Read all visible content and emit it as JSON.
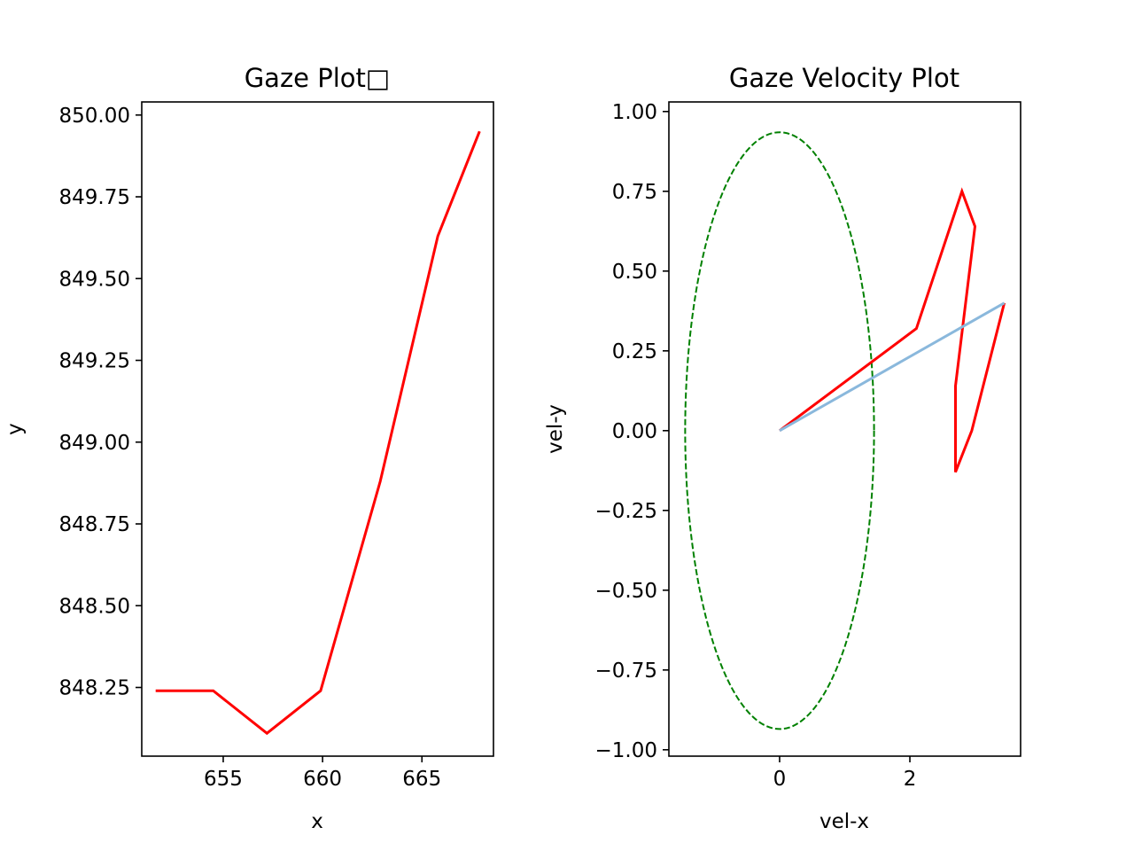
{
  "chart_data": [
    {
      "type": "line",
      "title": "Gaze Plot□",
      "xlabel": "x",
      "ylabel": "y",
      "xlim": [
        650.9,
        668.6
      ],
      "ylim": [
        848.04,
        850.04
      ],
      "xticks": [
        655,
        660,
        665
      ],
      "yticks": [
        848.25,
        848.5,
        848.75,
        849.0,
        849.25,
        849.5,
        849.75,
        850.0
      ],
      "xtick_labels": [
        "655",
        "660",
        "665"
      ],
      "ytick_labels": [
        "848.25",
        "848.50",
        "848.75",
        "849.00",
        "849.25",
        "849.50",
        "849.75",
        "850.00"
      ],
      "grid": false,
      "series": [
        {
          "color": "#ff0000",
          "points": [
            {
              "x": 651.6,
              "y": 848.24
            },
            {
              "x": 654.5,
              "y": 848.24
            },
            {
              "x": 657.2,
              "y": 848.11
            },
            {
              "x": 659.9,
              "y": 848.24
            },
            {
              "x": 662.9,
              "y": 848.88
            },
            {
              "x": 665.8,
              "y": 849.63
            },
            {
              "x": 667.9,
              "y": 849.95
            }
          ]
        }
      ]
    },
    {
      "type": "line",
      "title": "Gaze Velocity Plot",
      "xlabel": "vel-x",
      "ylabel": "vel-y",
      "xlim": [
        -1.7,
        3.7
      ],
      "ylim": [
        -1.02,
        1.03
      ],
      "xticks": [
        0,
        2
      ],
      "yticks": [
        -1.0,
        -0.75,
        -0.5,
        -0.25,
        0.0,
        0.25,
        0.5,
        0.75,
        1.0
      ],
      "xtick_labels": [
        "0",
        "2"
      ],
      "ytick_labels": [
        "−1.00",
        "−0.75",
        "−0.50",
        "−0.25",
        "0.00",
        "0.25",
        "0.50",
        "0.75",
        "1.00"
      ],
      "grid": false,
      "ellipse": {
        "cx": 0,
        "cy": 0,
        "rx": 1.45,
        "ry": 0.935,
        "color": "#008000",
        "style": "dashed"
      },
      "series": [
        {
          "color": "#ff0000",
          "points": [
            {
              "x": 0,
              "y": 0
            },
            {
              "x": 2.1,
              "y": 0.32
            },
            {
              "x": 2.8,
              "y": 0.75
            },
            {
              "x": 3.0,
              "y": 0.64
            },
            {
              "x": 2.7,
              "y": 0.14
            },
            {
              "x": 2.7,
              "y": -0.13
            },
            {
              "x": 2.95,
              "y": 0.0
            },
            {
              "x": 3.45,
              "y": 0.4
            }
          ]
        },
        {
          "color": "#8ab8dc",
          "points": [
            {
              "x": 0,
              "y": 0
            },
            {
              "x": 3.45,
              "y": 0.4
            }
          ]
        }
      ]
    }
  ]
}
